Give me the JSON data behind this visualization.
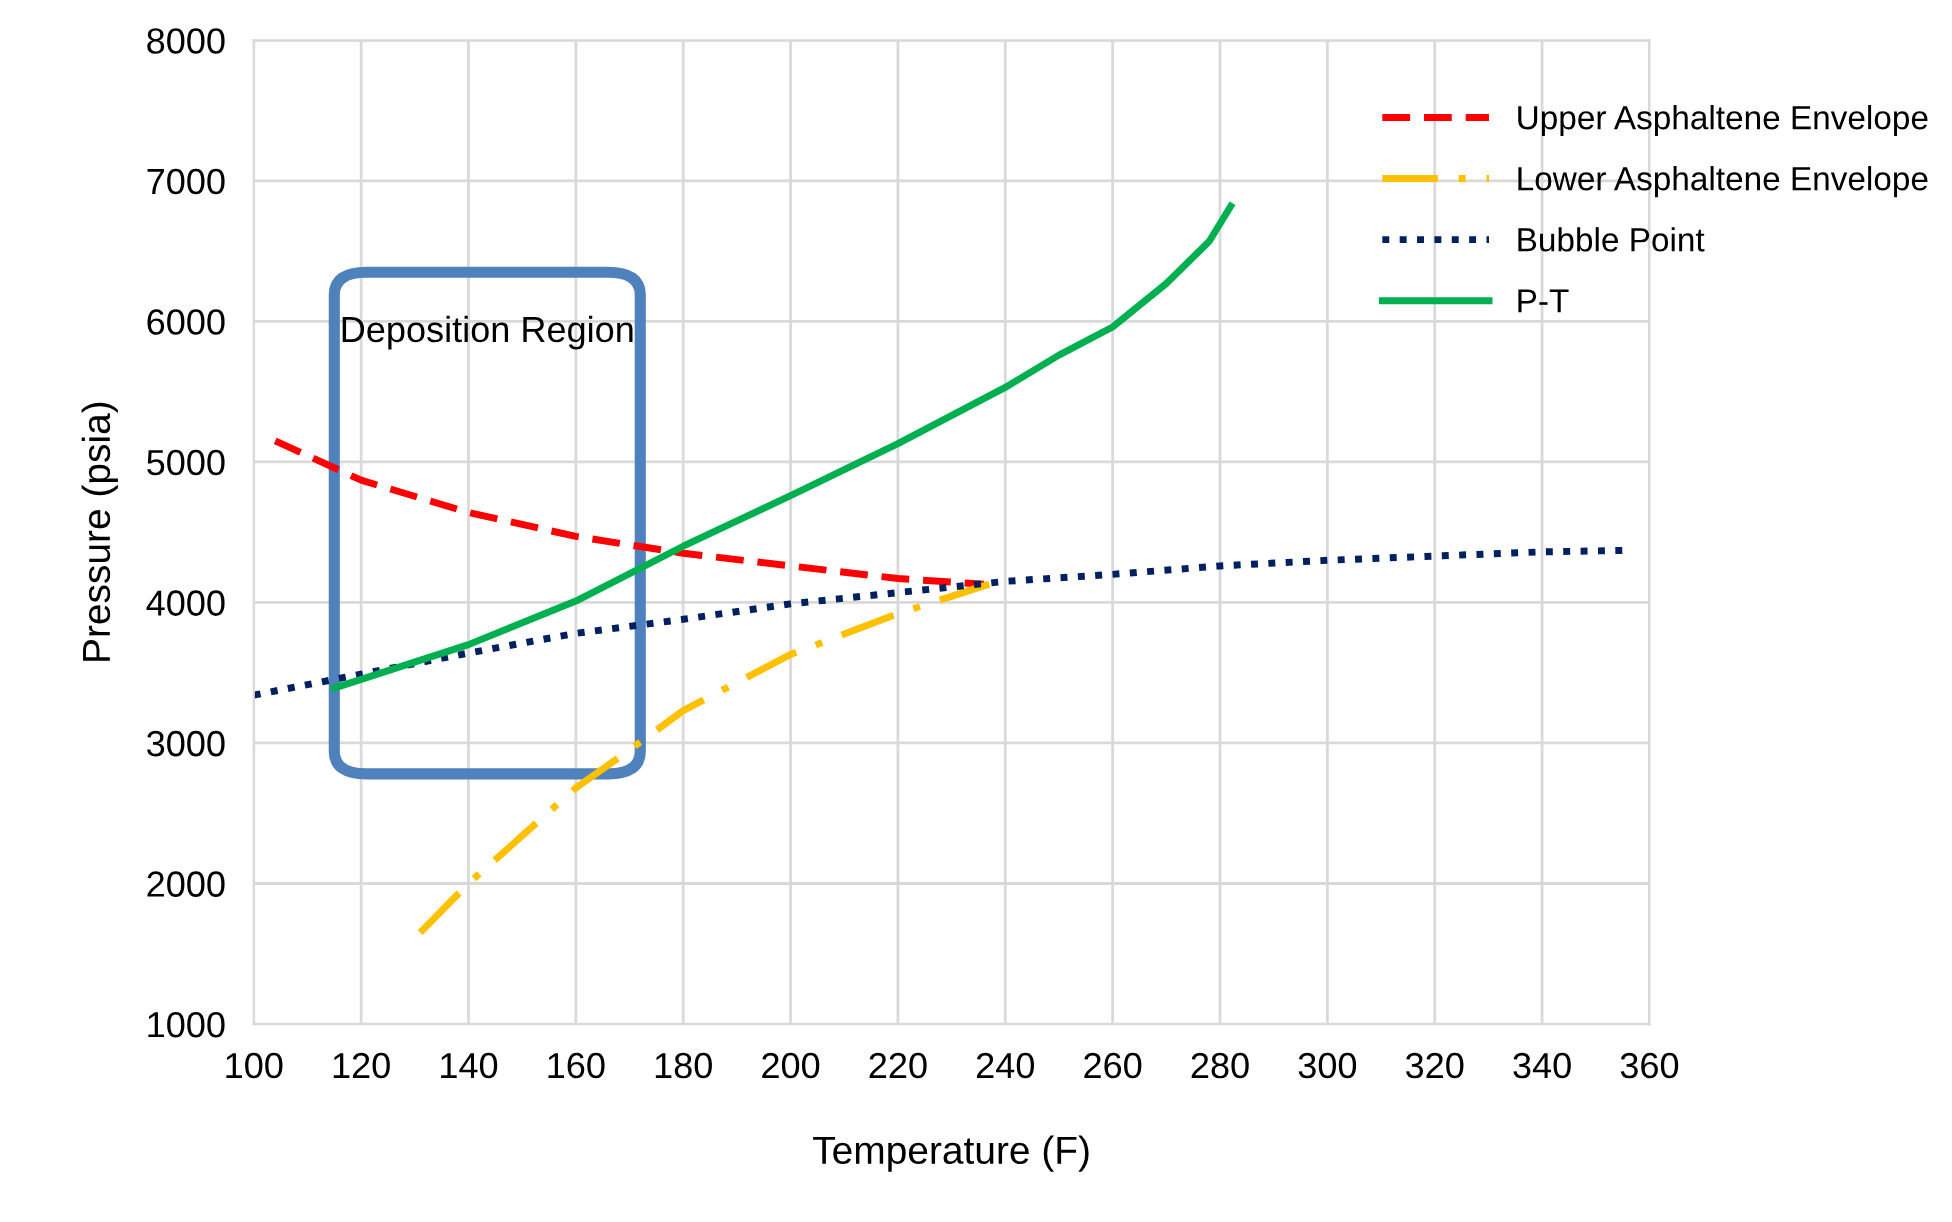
{
  "chart_data": {
    "type": "line",
    "xlabel": "Temperature (F)",
    "ylabel": "Pressure (psia)",
    "xlim": [
      100,
      360
    ],
    "xticks": [
      100,
      120,
      140,
      160,
      180,
      200,
      220,
      240,
      260,
      280,
      300,
      320,
      340,
      360
    ],
    "ylim": [
      1000,
      8000
    ],
    "yticks": [
      1000,
      2000,
      3000,
      4000,
      5000,
      6000,
      7000,
      8000
    ],
    "grid": true,
    "legend": "right",
    "annotations": [
      "Deposition Region"
    ],
    "series": [
      {
        "name": "Upper Asphaltene Envelope",
        "color": "#ff0000",
        "line_style": "dashed",
        "x": [
          104,
          120,
          140,
          160,
          180,
          200,
          220,
          236
        ],
        "values": [
          5150,
          4870,
          4640,
          4470,
          4350,
          4260,
          4170,
          4130
        ]
      },
      {
        "name": "Lower Asphaltene Envelope",
        "color": "#ffc000",
        "line_style": "dashdot",
        "x": [
          131,
          140,
          160,
          170,
          180,
          200,
          220,
          237
        ],
        "values": [
          1650,
          2000,
          2680,
          2950,
          3230,
          3630,
          3920,
          4130
        ]
      },
      {
        "name": "Bubble Point",
        "color": "#002060",
        "line_style": "dotted",
        "x": [
          100,
          120,
          140,
          160,
          180,
          200,
          220,
          240,
          260,
          280,
          300,
          320,
          340,
          355
        ],
        "values": [
          3340,
          3490,
          3640,
          3780,
          3880,
          3990,
          4070,
          4150,
          4200,
          4260,
          4300,
          4330,
          4360,
          4370
        ]
      },
      {
        "name": "P-T",
        "color": "#00b050",
        "line_style": "solid",
        "x": [
          115,
          140,
          160,
          180,
          200,
          220,
          240,
          250,
          260,
          270,
          278,
          282
        ],
        "values": [
          3390,
          3700,
          4010,
          4400,
          4760,
          5130,
          5530,
          5760,
          5960,
          6270,
          6570,
          6820
        ]
      }
    ]
  }
}
